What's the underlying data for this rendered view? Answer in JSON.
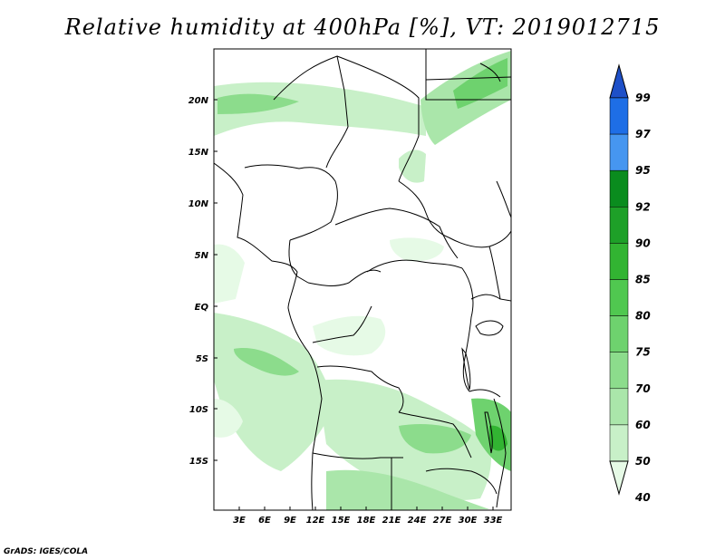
{
  "title": "Relative humidity at 400hPa [%], VT: 2019012715",
  "footer": "GrADS: IGES/COLA",
  "map": {
    "lat_labels": [
      "20N",
      "15N",
      "10N",
      "5N",
      "EQ",
      "5S",
      "10S",
      "15S"
    ],
    "lon_labels": [
      "3E",
      "6E",
      "9E",
      "12E",
      "15E",
      "18E",
      "21E",
      "24E",
      "27E",
      "30E",
      "33E"
    ]
  },
  "colorbar": {
    "levels": [
      "99",
      "97",
      "95",
      "92",
      "90",
      "85",
      "80",
      "75",
      "70",
      "60",
      "50",
      "40"
    ],
    "colors": [
      "#1e50c8",
      "#1e6ee6",
      "#4696f0",
      "#0a8c1e",
      "#1ea028",
      "#32b432",
      "#50c850",
      "#6ed26e",
      "#8cdc8c",
      "#aae6aa",
      "#c8f0c8",
      "#e6fae6"
    ]
  },
  "colors": {
    "humid_light": "#e6fae6",
    "humid_mid": "#c8f0c8",
    "humid_strong": "#8cdc8c",
    "humid_dark": "#32b432",
    "border": "#000000"
  }
}
